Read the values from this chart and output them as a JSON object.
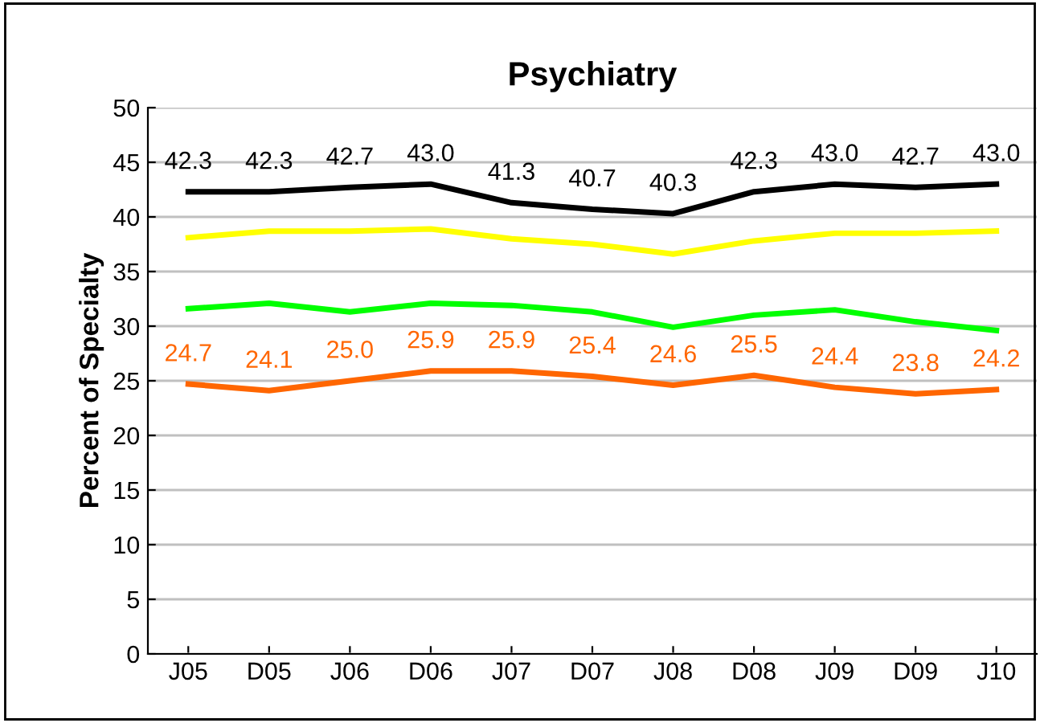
{
  "chart_data": {
    "type": "line",
    "title": "Psychiatry",
    "ylabel": "Percent of Specialty",
    "categories": [
      "J05",
      "D05",
      "J06",
      "D06",
      "J07",
      "D07",
      "J08",
      "D08",
      "J09",
      "D09",
      "J10"
    ],
    "series": [
      {
        "color": "#000000",
        "values": [
          42.3,
          42.3,
          42.7,
          43.0,
          41.3,
          40.7,
          40.3,
          42.3,
          43.0,
          42.7,
          43.0
        ],
        "value_labels": [
          "42.3",
          "42.3",
          "42.7",
          "43.0",
          "41.3",
          "40.7",
          "40.3",
          "42.3",
          "43.0",
          "42.7",
          "43.0"
        ]
      },
      {
        "color": "#ffff00",
        "values": [
          38.1,
          38.7,
          38.7,
          38.9,
          38.0,
          37.5,
          36.6,
          37.8,
          38.5,
          38.5,
          38.7
        ]
      },
      {
        "color": "#00ff00",
        "values": [
          31.6,
          32.1,
          31.3,
          32.1,
          31.9,
          31.3,
          29.9,
          31.0,
          31.5,
          30.4,
          29.6
        ]
      },
      {
        "color": "#ff6600",
        "values": [
          24.7,
          24.1,
          25.0,
          25.9,
          25.9,
          25.4,
          24.6,
          25.5,
          24.4,
          23.8,
          24.2
        ],
        "value_labels": [
          "24.7",
          "24.1",
          "25.0",
          "25.9",
          "25.9",
          "25.4",
          "24.6",
          "25.5",
          "24.4",
          "23.8",
          "24.2"
        ]
      }
    ],
    "ylim": [
      0,
      50
    ],
    "yticks": [
      0,
      5,
      10,
      15,
      20,
      25,
      30,
      35,
      40,
      45,
      50
    ],
    "grid": "y",
    "marker": "none",
    "line_style": "solid"
  }
}
